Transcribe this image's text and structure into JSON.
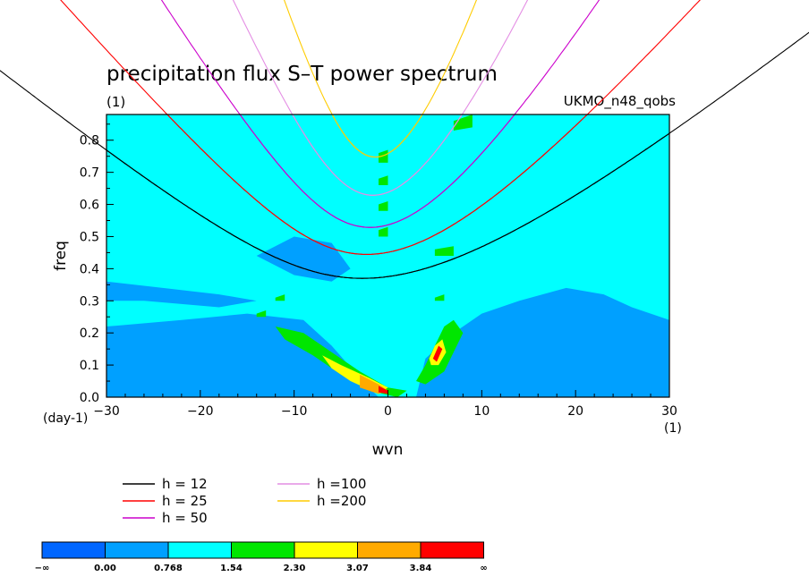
{
  "chart_data": {
    "type": "heatmap",
    "title": "precipitation flux S–T power spectrum",
    "subtitle_left": "(1)",
    "subtitle_right": "UKMO_n48_qobs",
    "xlabel": "wvn",
    "ylabel": "freq",
    "x_unit_label": "(1)",
    "y_unit_label": "(day-1)",
    "xlim": [
      -30,
      30
    ],
    "ylim": [
      0,
      0.88
    ],
    "x_ticks": [
      -30,
      -20,
      -10,
      0,
      10,
      20,
      30
    ],
    "y_ticks": [
      0.0,
      0.1,
      0.2,
      0.3,
      0.4,
      0.5,
      0.6,
      0.7,
      0.8
    ],
    "x_tick_labels": [
      "−30",
      "−20",
      "−10",
      "0",
      "10",
      "20",
      "30"
    ],
    "y_tick_labels": [
      "0.0",
      "0.1",
      "0.2",
      "0.3",
      "0.4",
      "0.5",
      "0.6",
      "0.7",
      "0.8"
    ],
    "background_level_color": "#00ffff",
    "spectral_regions": [
      {
        "name": "low-power-west",
        "level": 1,
        "points": [
          [
            -30,
            0.22
          ],
          [
            -22,
            0.24
          ],
          [
            -15,
            0.26
          ],
          [
            -9,
            0.24
          ],
          [
            -6,
            0.16
          ],
          [
            -3,
            0.06
          ],
          [
            -1,
            0.0
          ],
          [
            -30,
            0.0
          ]
        ]
      },
      {
        "name": "low-power-west-upper",
        "level": 1,
        "points": [
          [
            -30,
            0.36
          ],
          [
            -24,
            0.34
          ],
          [
            -18,
            0.32
          ],
          [
            -14,
            0.3
          ],
          [
            -18,
            0.28
          ],
          [
            -26,
            0.3
          ],
          [
            -30,
            0.3
          ]
        ]
      },
      {
        "name": "low-power-east",
        "level": 1,
        "points": [
          [
            3,
            0.0
          ],
          [
            4,
            0.12
          ],
          [
            7,
            0.2
          ],
          [
            10,
            0.26
          ],
          [
            14,
            0.3
          ],
          [
            19,
            0.34
          ],
          [
            23,
            0.32
          ],
          [
            26,
            0.28
          ],
          [
            30,
            0.24
          ],
          [
            30,
            0.0
          ]
        ]
      },
      {
        "name": "low-power-central",
        "level": 1,
        "points": [
          [
            -14,
            0.44
          ],
          [
            -10,
            0.5
          ],
          [
            -6,
            0.48
          ],
          [
            -4,
            0.4
          ],
          [
            -6,
            0.36
          ],
          [
            -10,
            0.38
          ]
        ]
      },
      {
        "name": "kelvin-band-low",
        "level": 3,
        "points": [
          [
            -12,
            0.22
          ],
          [
            -9,
            0.2
          ],
          [
            -6,
            0.14
          ],
          [
            -3,
            0.08
          ],
          [
            0,
            0.03
          ],
          [
            2,
            0.02
          ],
          [
            1,
            0.0
          ],
          [
            -2,
            0.02
          ],
          [
            -5,
            0.07
          ],
          [
            -8,
            0.13
          ],
          [
            -11,
            0.18
          ]
        ]
      },
      {
        "name": "kelvin-band-mid",
        "level": 4,
        "points": [
          [
            -7,
            0.13
          ],
          [
            -5,
            0.1
          ],
          [
            -2,
            0.06
          ],
          [
            0,
            0.03
          ],
          [
            -1,
            0.01
          ],
          [
            -4,
            0.05
          ],
          [
            -6,
            0.09
          ]
        ]
      },
      {
        "name": "kelvin-band-high",
        "level": 5,
        "points": [
          [
            -3,
            0.07
          ],
          [
            -1,
            0.04
          ],
          [
            0,
            0.02
          ],
          [
            -1,
            0.01
          ],
          [
            -3,
            0.03
          ]
        ]
      },
      {
        "name": "kelvin-band-peak",
        "level": 6,
        "points": [
          [
            -1,
            0.035
          ],
          [
            0,
            0.02
          ],
          [
            0,
            0.01
          ],
          [
            -1,
            0.015
          ]
        ]
      },
      {
        "name": "east-band-low",
        "level": 3,
        "points": [
          [
            3,
            0.05
          ],
          [
            4,
            0.1
          ],
          [
            5,
            0.16
          ],
          [
            6,
            0.22
          ],
          [
            7,
            0.24
          ],
          [
            8,
            0.2
          ],
          [
            7,
            0.14
          ],
          [
            6,
            0.08
          ],
          [
            4,
            0.04
          ]
        ]
      },
      {
        "name": "east-band-mid",
        "level": 4,
        "points": [
          [
            4.4,
            0.12
          ],
          [
            5,
            0.16
          ],
          [
            5.8,
            0.18
          ],
          [
            6.2,
            0.14
          ],
          [
            5.4,
            0.1
          ],
          [
            4.6,
            0.1
          ]
        ]
      },
      {
        "name": "east-band-peak",
        "level": 6,
        "points": [
          [
            4.8,
            0.12
          ],
          [
            5.4,
            0.16
          ],
          [
            5.8,
            0.15
          ],
          [
            5.2,
            0.11
          ]
        ]
      },
      {
        "name": "upper-green-1",
        "level": 3,
        "points": [
          [
            7,
            0.86
          ],
          [
            9,
            0.88
          ],
          [
            9,
            0.84
          ],
          [
            7,
            0.83
          ]
        ]
      },
      {
        "name": "upper-green-2",
        "level": 3,
        "points": [
          [
            5,
            0.46
          ],
          [
            7,
            0.47
          ],
          [
            7,
            0.44
          ],
          [
            5,
            0.44
          ]
        ]
      },
      {
        "name": "upper-green-3",
        "level": 3,
        "points": [
          [
            5,
            0.31
          ],
          [
            6,
            0.32
          ],
          [
            6,
            0.3
          ],
          [
            5,
            0.3
          ]
        ]
      },
      {
        "name": "upper-green-4",
        "level": 3,
        "points": [
          [
            -12,
            0.31
          ],
          [
            -11,
            0.32
          ],
          [
            -11,
            0.3
          ],
          [
            -12,
            0.3
          ]
        ]
      },
      {
        "name": "upper-green-5",
        "level": 3,
        "points": [
          [
            -1,
            0.76
          ],
          [
            0,
            0.77
          ],
          [
            0,
            0.73
          ],
          [
            -1,
            0.73
          ]
        ]
      },
      {
        "name": "upper-green-6",
        "level": 3,
        "points": [
          [
            -1,
            0.68
          ],
          [
            0,
            0.69
          ],
          [
            0,
            0.66
          ],
          [
            -1,
            0.66
          ]
        ]
      },
      {
        "name": "upper-green-7",
        "level": 3,
        "points": [
          [
            -1,
            0.6
          ],
          [
            0,
            0.61
          ],
          [
            0,
            0.58
          ],
          [
            -1,
            0.58
          ]
        ]
      },
      {
        "name": "upper-green-8",
        "level": 3,
        "points": [
          [
            -1,
            0.52
          ],
          [
            0,
            0.53
          ],
          [
            0,
            0.5
          ],
          [
            -1,
            0.5
          ]
        ]
      },
      {
        "name": "upper-green-9",
        "level": 3,
        "points": [
          [
            -14,
            0.26
          ],
          [
            -13,
            0.27
          ],
          [
            -13,
            0.25
          ],
          [
            -14,
            0.25
          ]
        ]
      }
    ],
    "series": [
      {
        "name": "h = 12",
        "h": 12,
        "color": "#000000"
      },
      {
        "name": "h = 25",
        "h": 25,
        "color": "#ff0000"
      },
      {
        "name": "h = 50",
        "h": 50,
        "color": "#cc00cc"
      },
      {
        "name": "h =100",
        "h": 100,
        "color": "#e48ee4"
      },
      {
        "name": "h =200",
        "h": 200,
        "color": "#ffcc00"
      }
    ],
    "legend_placement": "bottom",
    "grid": false,
    "colorbar": {
      "labels": [
        "−∞",
        "0.00",
        "0.768",
        "1.54",
        "2.30",
        "3.07",
        "3.84",
        "∞"
      ],
      "colors": [
        "#0066ff",
        "#00a0ff",
        "#00ffff",
        "#00e600",
        "#ffff00",
        "#ffaa00",
        "#ff0000"
      ]
    }
  }
}
